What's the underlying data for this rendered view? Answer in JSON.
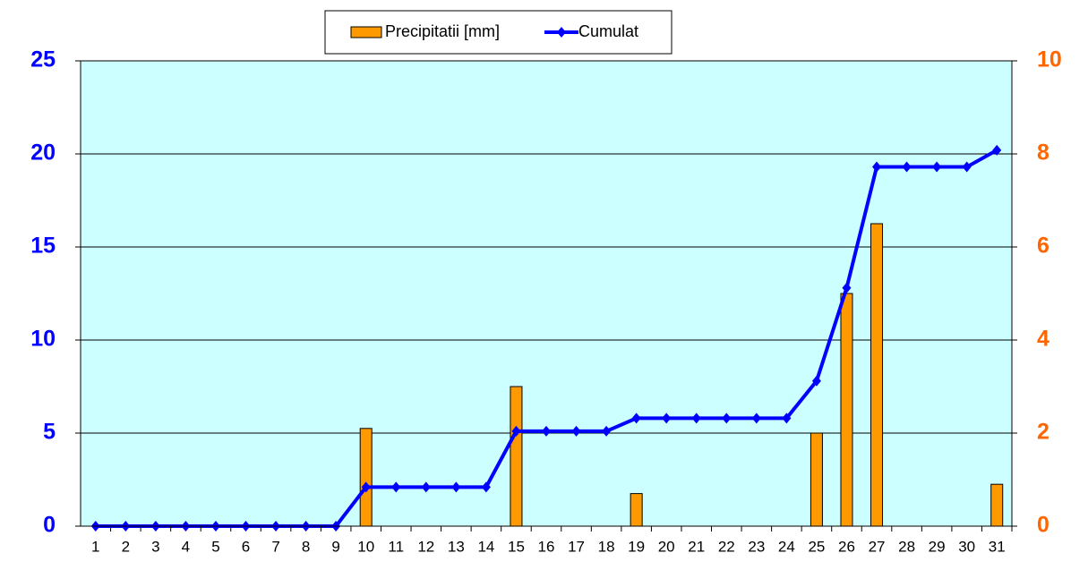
{
  "chart_data": {
    "type": "bar-line",
    "categories": [
      "1",
      "2",
      "3",
      "4",
      "5",
      "6",
      "7",
      "8",
      "9",
      "10",
      "11",
      "12",
      "13",
      "14",
      "15",
      "16",
      "17",
      "18",
      "19",
      "20",
      "21",
      "22",
      "23",
      "24",
      "25",
      "26",
      "27",
      "28",
      "29",
      "30",
      "31"
    ],
    "series": [
      {
        "name": "Precipitatii [mm]",
        "type": "bar",
        "axis": "y2",
        "color": "#ff9900",
        "values": [
          0,
          0,
          0,
          0,
          0,
          0,
          0,
          0,
          0,
          2.1,
          0,
          0,
          0,
          0,
          3.0,
          0,
          0,
          0,
          0.7,
          0,
          0,
          0,
          0,
          0,
          2.0,
          5.0,
          6.5,
          0,
          0,
          0,
          0.9
        ]
      },
      {
        "name": "Cumulat",
        "type": "line",
        "axis": "y",
        "color": "#0000ff",
        "values": [
          0,
          0,
          0,
          0,
          0,
          0,
          0,
          0,
          0,
          2.1,
          2.1,
          2.1,
          2.1,
          2.1,
          5.1,
          5.1,
          5.1,
          5.1,
          5.8,
          5.8,
          5.8,
          5.8,
          5.8,
          5.8,
          7.8,
          12.8,
          19.3,
          19.3,
          19.3,
          19.3,
          20.2
        ]
      }
    ],
    "ylim": [
      0,
      25
    ],
    "yticks": [
      0,
      5,
      10,
      15,
      20,
      25
    ],
    "y2lim": [
      0,
      10
    ],
    "y2ticks": [
      0,
      2,
      4,
      6,
      8,
      10
    ],
    "grid": true,
    "legend": "top"
  }
}
